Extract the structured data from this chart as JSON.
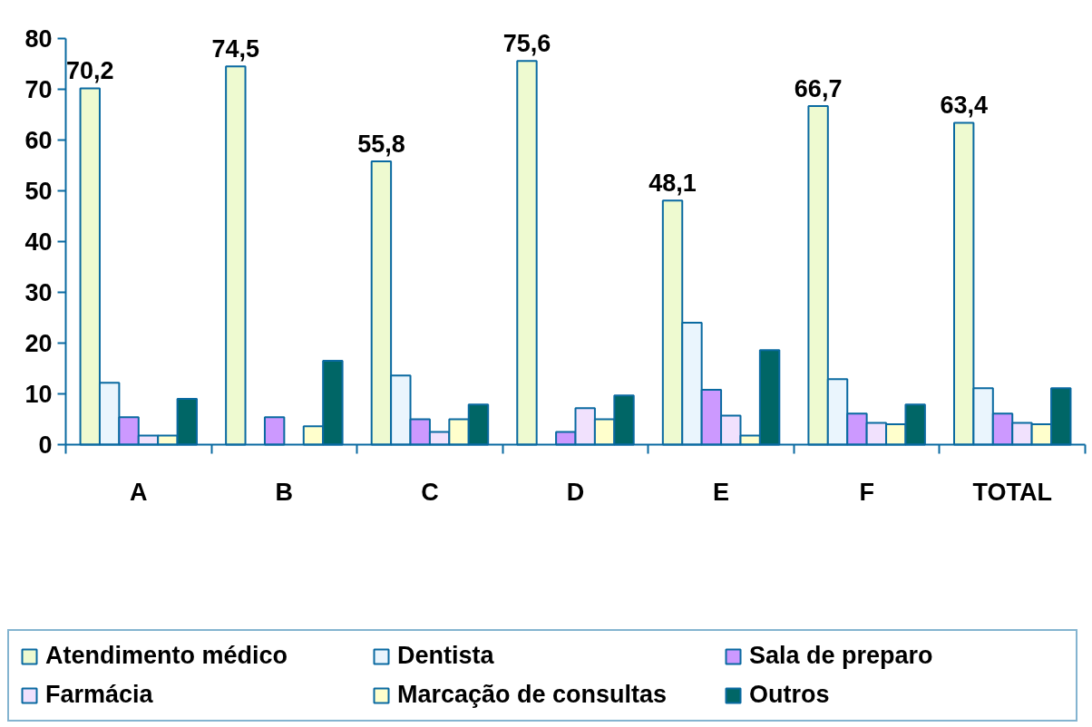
{
  "chart_data": {
    "type": "bar",
    "categories": [
      "A",
      "B",
      "C",
      "D",
      "E",
      "F",
      "TOTAL"
    ],
    "series": [
      {
        "name": "Atendimento médico",
        "color": "#eefad0",
        "values": [
          70.2,
          74.5,
          55.8,
          75.6,
          48.1,
          66.7,
          63.4
        ],
        "value_labels": [
          "70,2",
          "74,5",
          "55,8",
          "75,6",
          "48,1",
          "66,7",
          "63,4"
        ]
      },
      {
        "name": "Dentista",
        "color": "#eaf5fd",
        "values": [
          12.2,
          null,
          13.6,
          null,
          24.0,
          12.9,
          11.1
        ]
      },
      {
        "name": "Sala de preparo",
        "color": "#cc99ff",
        "values": [
          5.4,
          5.4,
          5.0,
          2.5,
          10.8,
          6.1,
          6.1
        ]
      },
      {
        "name": "Farmácia",
        "color": "#f1e1fd",
        "values": [
          1.8,
          null,
          2.5,
          7.2,
          5.7,
          4.3,
          4.3
        ]
      },
      {
        "name": "Marcação de consultas",
        "color": "#ffffcc",
        "values": [
          1.8,
          3.6,
          5.0,
          5.0,
          1.8,
          4.0,
          4.0
        ]
      },
      {
        "name": "Outros",
        "color": "#006666",
        "values": [
          9.0,
          16.5,
          7.9,
          9.7,
          18.6,
          7.9,
          11.1
        ]
      }
    ],
    "ylim": [
      0,
      80
    ],
    "yticks": [
      0,
      10,
      20,
      30,
      40,
      50,
      60,
      70,
      80
    ],
    "grid": false,
    "legend": "bottom"
  }
}
